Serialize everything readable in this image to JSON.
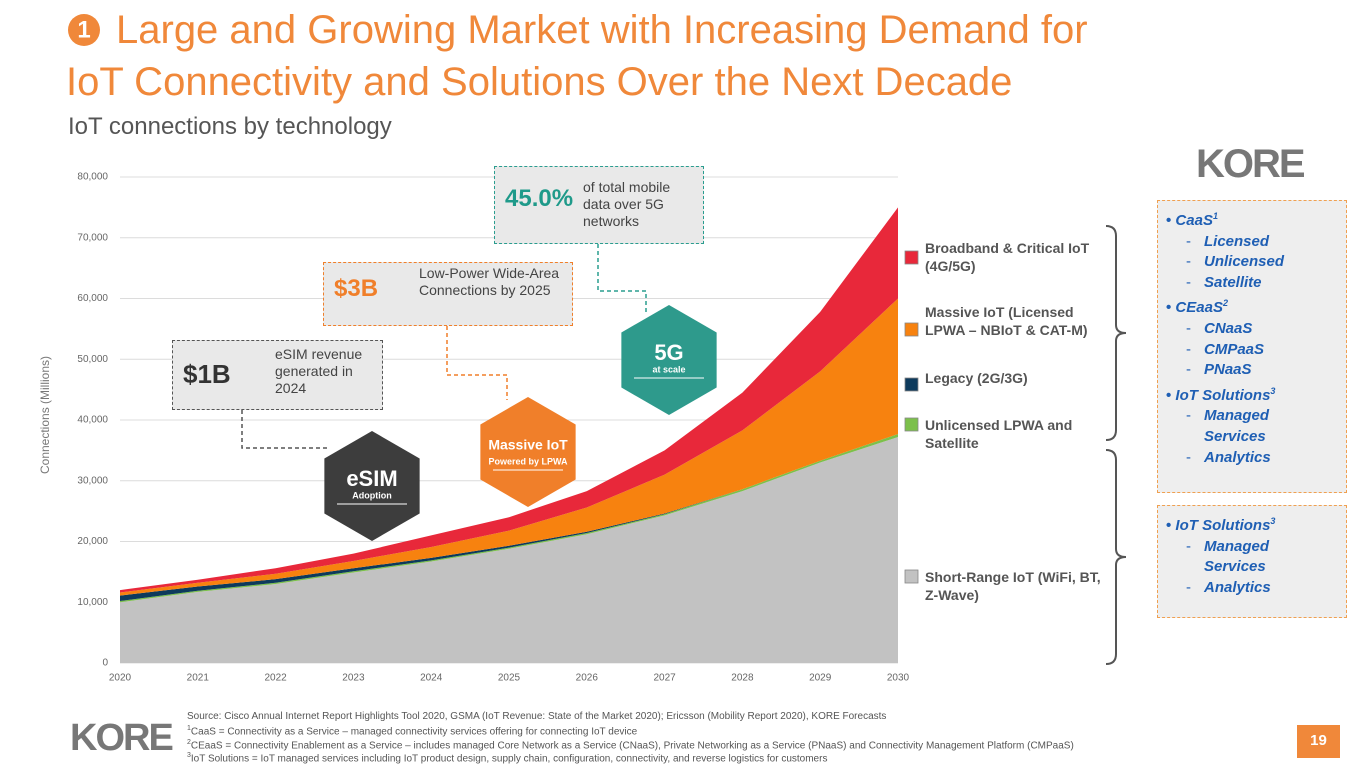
{
  "header": {
    "number": "1",
    "title_lines": [
      "Large and Growing Market with Increasing Demand for",
      "IoT Connectivity and Solutions Over the Next Decade"
    ],
    "subtitle": "IoT connections by technology"
  },
  "chart_data": {
    "type": "area",
    "stacked": true,
    "ylabel": "Connections (Millions)",
    "x": [
      2020,
      2021,
      2022,
      2023,
      2024,
      2025,
      2026,
      2027,
      2028,
      2029,
      2030
    ],
    "xlim": [
      2020,
      2030
    ],
    "xticks": [
      2020,
      2021,
      2022,
      2023,
      2024,
      2025,
      2026,
      2027,
      2028,
      2029,
      2030
    ],
    "ylim": [
      0,
      80000
    ],
    "yticks": [
      0,
      {
        "value": 10000,
        "label": "10,000"
      },
      {
        "value": 20000,
        "label": "20,000"
      },
      {
        "value": 30000,
        "label": "30,000"
      },
      {
        "value": 40000,
        "label": "40,000"
      },
      {
        "value": 50000,
        "label": "50,000"
      },
      {
        "value": 60000,
        "label": "60,000"
      },
      {
        "value": 70000,
        "label": "70,000"
      },
      {
        "value": 80000,
        "label": "80,000"
      }
    ],
    "grid": true,
    "series": [
      {
        "name": "Short-Range IoT (WiFi, BT, Z-Wave)",
        "color": "#c2c2c2",
        "values": [
          10000,
          11700,
          13000,
          14900,
          16700,
          18800,
          21200,
          24300,
          28300,
          33000,
          37200
        ]
      },
      {
        "name": "Unlicensed LPWA and Satellite",
        "color": "#7cc04b",
        "values": [
          200,
          200,
          200,
          200,
          200,
          200,
          200,
          200,
          300,
          300,
          500
        ]
      },
      {
        "name": "Legacy (2G/3G)",
        "color": "#0d3a5c",
        "values": [
          900,
          700,
          600,
          500,
          400,
          300,
          200,
          100,
          0,
          0,
          0
        ]
      },
      {
        "name": "Massive IoT (Licensed LPWA – NBIoT & CAT-M)",
        "color": "#f7820f",
        "values": [
          500,
          600,
          900,
          1200,
          1800,
          2500,
          4000,
          6400,
          9700,
          14700,
          22300
        ]
      },
      {
        "name": "Broadband & Critical IoT (4G/5G)",
        "color": "#e8283a",
        "values": [
          400,
          500,
          900,
          1200,
          1900,
          2200,
          2700,
          4000,
          6200,
          9800,
          15000
        ]
      }
    ]
  },
  "callouts": [
    {
      "value": "$1B",
      "text": "eSIM revenue generated in 2024"
    },
    {
      "value": "$3B",
      "text": "Low-Power Wide-Area Connections by 2025"
    },
    {
      "value": "45.0%",
      "text": "of total mobile data over 5G networks"
    }
  ],
  "badges": [
    {
      "title": "eSIM",
      "subtitle": "Adoption"
    },
    {
      "title": "Massive IoT",
      "subtitle": "Powered by LPWA"
    },
    {
      "title": "5G",
      "subtitle": "at scale"
    }
  ],
  "logo": "KORE",
  "offerings": [
    [
      {
        "name": "CaaS",
        "sup": "1",
        "items": [
          "Licensed",
          "Unlicensed",
          "Satellite"
        ]
      },
      {
        "name": "CEaaS",
        "sup": "2",
        "items": [
          "CNaaS",
          "CMPaaS",
          "PNaaS"
        ]
      },
      {
        "name": "IoT Solutions",
        "sup": "3",
        "items": [
          "Managed Services",
          "Analytics"
        ]
      }
    ],
    [
      {
        "name": "IoT Solutions",
        "sup": "3",
        "items": [
          "Managed Services",
          "Analytics"
        ]
      }
    ]
  ],
  "footnotes": {
    "source": "Source: Cisco Annual Internet Report Highlights Tool 2020, GSMA (IoT Revenue: State of the Market 2020); Ericsson (Mobility Report 2020), KORE Forecasts",
    "notes": [
      {
        "sup": "1",
        "text": "CaaS = Connectivity as a Service – managed connectivity services offering for connecting IoT device"
      },
      {
        "sup": "2",
        "text": "CEaaS = Connectivity Enablement as a Service – includes managed Core Network as a Service (CNaaS), Private Networking as a Service (PNaaS) and Connectivity Management Platform (CMPaaS)"
      },
      {
        "sup": "3",
        "text": "IoT Solutions = IoT managed services including IoT product design, supply chain, configuration, connectivity, and reverse logistics for customers"
      }
    ]
  },
  "page_number": "19"
}
